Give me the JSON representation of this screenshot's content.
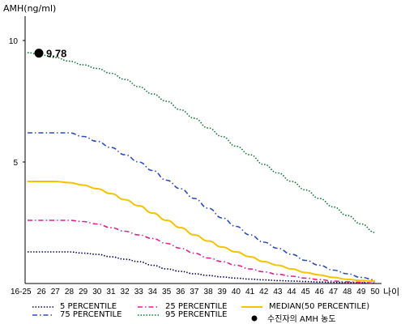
{
  "chart_data": {
    "type": "line",
    "ylabel": "AMH(ng/ml)",
    "xlabel": "나이",
    "yticks": [
      "10",
      "5"
    ],
    "ylim": [
      0,
      10.5
    ],
    "categories": [
      "16-25",
      "26",
      "27",
      "28",
      "29",
      "30",
      "31",
      "32",
      "33",
      "34",
      "35",
      "36",
      "37",
      "38",
      "39",
      "40",
      "41",
      "42",
      "43",
      "44",
      "45",
      "46",
      "47",
      "48",
      "49",
      "50"
    ],
    "series": [
      {
        "name": "5 PERCENTILE",
        "color": "#000066",
        "dash": "dot",
        "values": [
          1.3,
          1.3,
          1.3,
          1.3,
          1.25,
          1.2,
          1.1,
          1.0,
          0.9,
          0.75,
          0.6,
          0.5,
          0.4,
          0.33,
          0.27,
          0.22,
          0.18,
          0.15,
          0.12,
          0.1,
          0.08,
          0.06,
          0.05,
          0.04,
          0.03,
          0.02
        ]
      },
      {
        "name": "25 PERCENTILE",
        "color": "#e0218a",
        "dash": "dashdot",
        "values": [
          2.6,
          2.6,
          2.6,
          2.6,
          2.55,
          2.45,
          2.3,
          2.15,
          2.0,
          1.85,
          1.65,
          1.45,
          1.25,
          1.05,
          0.9,
          0.75,
          0.6,
          0.48,
          0.38,
          0.3,
          0.22,
          0.16,
          0.1,
          0.07,
          0.05,
          0.02
        ]
      },
      {
        "name": "MEDIAN(50 PERCENTILE)",
        "color": "#f2c500",
        "dash": "solid",
        "values": [
          4.2,
          4.2,
          4.2,
          4.15,
          4.05,
          3.9,
          3.7,
          3.45,
          3.2,
          2.9,
          2.6,
          2.3,
          2.0,
          1.75,
          1.5,
          1.3,
          1.1,
          0.9,
          0.75,
          0.6,
          0.45,
          0.35,
          0.25,
          0.17,
          0.12,
          0.1
        ]
      },
      {
        "name": "75 PERCENTILE",
        "color": "#2e4bbd",
        "dash": "dashdot",
        "values": [
          6.2,
          6.2,
          6.2,
          6.2,
          6.05,
          5.85,
          5.6,
          5.3,
          5.0,
          4.65,
          4.25,
          3.9,
          3.5,
          3.1,
          2.7,
          2.35,
          2.0,
          1.7,
          1.45,
          1.2,
          0.95,
          0.75,
          0.55,
          0.4,
          0.25,
          0.15
        ]
      },
      {
        "name": "95 PERCENTILE",
        "color": "#0f7a3a",
        "dash": "dot",
        "values": [
          9.5,
          9.4,
          9.3,
          9.15,
          9.0,
          8.85,
          8.65,
          8.4,
          8.1,
          7.8,
          7.5,
          7.15,
          6.8,
          6.4,
          6.05,
          5.65,
          5.3,
          4.9,
          4.55,
          4.2,
          3.85,
          3.5,
          3.15,
          2.8,
          2.45,
          2.1
        ]
      }
    ],
    "marker": {
      "name": "수진자의 AMH 농도",
      "x": "16-25",
      "y": 9.78,
      "label": "9.78"
    },
    "legend": [
      {
        "label": "5 PERCENTILE",
        "color": "#000066",
        "dash": "dot"
      },
      {
        "label": "25 PERCENTILE",
        "color": "#e0218a",
        "dash": "dashdot"
      },
      {
        "label": "MEDIAN(50 PERCENTILE)",
        "color": "#f2c500",
        "dash": "solid"
      },
      {
        "label": "75 PERCENTILE",
        "color": "#2e4bbd",
        "dash": "dashdot"
      },
      {
        "label": "95 PERCENTILE",
        "color": "#0f7a3a",
        "dash": "dot"
      },
      {
        "label": "수진자의 AMH 농도",
        "color": "#000000",
        "dash": "marker"
      }
    ]
  }
}
